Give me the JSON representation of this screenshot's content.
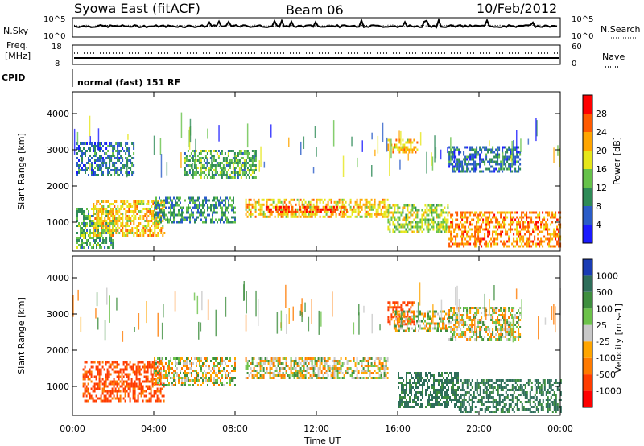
{
  "header": {
    "station": "Syowa East (fitACF)",
    "beam": "Beam 06",
    "date": "10/Feb/2012"
  },
  "strip_nsky": {
    "left_label": "N.Sky",
    "right_label": "N.Search",
    "ticks_left": [
      "10^5",
      "10^0"
    ],
    "ticks_right": [
      "10^5",
      "10^0"
    ]
  },
  "strip_freq": {
    "left_label_1": "Freq.",
    "left_label_2": "[MHz]",
    "right_label": "Nave",
    "ticks_left": [
      "18",
      "8"
    ],
    "ticks_right": [
      "60",
      "0"
    ]
  },
  "strip_cpid": {
    "left_label": "CPID",
    "text": "normal (fast) 151 RF"
  },
  "chart_data": [
    {
      "type": "heatmap",
      "quantity": "Power",
      "ylabel": "Slant Range [km]",
      "xlabel": "Time UT",
      "x_ticks": [
        "00:00",
        "04:00",
        "08:00",
        "12:00",
        "16:00",
        "20:00",
        "00:00"
      ],
      "y_ticks": [
        1000,
        2000,
        3000,
        4000
      ],
      "ylim": [
        200,
        4600
      ],
      "xlim_hours": [
        0,
        24
      ],
      "colorbar": {
        "label": "Power [dB]",
        "ticks": [
          "4",
          "8",
          "12",
          "16",
          "20",
          "24",
          "28"
        ],
        "colors": [
          "#1a1aff",
          "#2a5cc8",
          "#2e8b57",
          "#66c24a",
          "#e6e61a",
          "#ffa500",
          "#ff5a00",
          "#ff0000"
        ]
      },
      "regions": [
        {
          "t": [
            0.2,
            2.0
          ],
          "r": [
            300,
            1400
          ],
          "value": 12
        },
        {
          "t": [
            1.0,
            4.5
          ],
          "r": [
            650,
            1600
          ],
          "value": 20
        },
        {
          "t": [
            4.0,
            8.0
          ],
          "r": [
            1000,
            1700
          ],
          "value": 10
        },
        {
          "t": [
            8.5,
            15.5
          ],
          "r": [
            1150,
            1650
          ],
          "value": 20
        },
        {
          "t": [
            9.5,
            13.5
          ],
          "r": [
            1250,
            1450
          ],
          "value": 28
        },
        {
          "t": [
            15.5,
            18.5
          ],
          "r": [
            700,
            1500
          ],
          "value": 16
        },
        {
          "t": [
            18.5,
            24.0
          ],
          "r": [
            300,
            1300
          ],
          "value": 24
        },
        {
          "t": [
            15.5,
            17.0
          ],
          "r": [
            2900,
            3300
          ],
          "value": 20
        },
        {
          "t": [
            0.2,
            3.0
          ],
          "r": [
            2300,
            3200
          ],
          "value": 8
        },
        {
          "t": [
            5.5,
            9.0
          ],
          "r": [
            2200,
            3000
          ],
          "value": 12
        },
        {
          "t": [
            18.5,
            22.0
          ],
          "r": [
            2400,
            3100
          ],
          "value": 8
        }
      ]
    },
    {
      "type": "heatmap",
      "quantity": "Velocity",
      "ylabel": "Slant Range [km]",
      "xlabel": "Time UT",
      "x_ticks": [
        "00:00",
        "04:00",
        "08:00",
        "12:00",
        "16:00",
        "20:00",
        "00:00"
      ],
      "y_ticks": [
        1000,
        2000,
        3000,
        4000
      ],
      "ylim": [
        200,
        4600
      ],
      "xlim_hours": [
        0,
        24
      ],
      "colorbar": {
        "label": "Velocity [m s-1]",
        "ticks": [
          "1000",
          "500",
          "100",
          "25",
          "-25",
          "-100",
          "-500",
          "-1000"
        ],
        "colors": [
          "#1a3cb4",
          "#2e6e5a",
          "#3e8e3e",
          "#6cc24a",
          "#c8c8c8",
          "#ffa500",
          "#ff7a00",
          "#ff3c00",
          "#ff0000"
        ]
      },
      "regions": [
        {
          "t": [
            0.5,
            4.5
          ],
          "r": [
            600,
            1700
          ],
          "value": -300
        },
        {
          "t": [
            4.0,
            8.0
          ],
          "r": [
            1000,
            1800
          ],
          "value": 0
        },
        {
          "t": [
            8.5,
            15.5
          ],
          "r": [
            1200,
            1800
          ],
          "value": 0
        },
        {
          "t": [
            15.5,
            16.8
          ],
          "r": [
            2700,
            3350
          ],
          "value": -300
        },
        {
          "t": [
            15.8,
            18.5
          ],
          "r": [
            2500,
            3100
          ],
          "value": 0
        },
        {
          "t": [
            16.0,
            19.0
          ],
          "r": [
            400,
            1400
          ],
          "value": 300
        },
        {
          "t": [
            19.0,
            24.0
          ],
          "r": [
            300,
            1200
          ],
          "value": 300
        },
        {
          "t": [
            18.5,
            22.0
          ],
          "r": [
            2300,
            3200
          ],
          "value": 0
        }
      ]
    }
  ]
}
